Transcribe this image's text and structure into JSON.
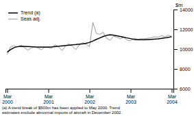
{
  "chart_data": {
    "type": "line",
    "ylabel": "$m",
    "annotations": [
      "(a) A trend break of $500m has been applied to May 2000. Trend\nestimates exclude abnormal imports of aircraft in December 2002."
    ],
    "categories": [
      "Mar\n2000",
      null,
      null,
      null,
      null,
      null,
      null,
      null,
      null,
      null,
      null,
      null,
      "Mar\n2001",
      null,
      null,
      null,
      null,
      null,
      null,
      null,
      null,
      null,
      null,
      null,
      "Mar\n2002",
      null,
      null,
      null,
      null,
      null,
      null,
      null,
      null,
      null,
      null,
      null,
      "Mar\n2003",
      null,
      null,
      null,
      null,
      null,
      null,
      null,
      null,
      null,
      null,
      null,
      "Mar\n2004"
    ],
    "series": [
      {
        "name": "Seas adj.",
        "color": "#999999",
        "values": [
          9450,
          10250,
          10350,
          10200,
          10400,
          10150,
          9900,
          10100,
          10300,
          10100,
          9950,
          10200,
          10150,
          10100,
          10450,
          10250,
          9850,
          10300,
          10550,
          10300,
          9950,
          10400,
          10650,
          10500,
          10250,
          12700,
          11600,
          11500,
          11700,
          11100,
          10900,
          11300,
          11200,
          11050,
          11200,
          10900,
          10850,
          11100,
          11000,
          11050,
          11050,
          11100,
          11150,
          11250,
          11200,
          11350,
          11250,
          11400,
          11300
        ]
      },
      {
        "name": "Trend (a)",
        "color": "#000000",
        "values": [
          9700,
          9950,
          10150,
          10250,
          10300,
          10280,
          10260,
          10240,
          10220,
          10210,
          10200,
          10200,
          10210,
          10230,
          10260,
          10290,
          10330,
          10370,
          10400,
          10430,
          10460,
          10500,
          10540,
          10590,
          10680,
          10820,
          10980,
          11130,
          11280,
          11390,
          11450,
          11410,
          11350,
          11280,
          11200,
          11130,
          11060,
          10990,
          10950,
          10940,
          10950,
          10970,
          10990,
          11010,
          11040,
          11080,
          11130,
          11190,
          11250
        ]
      }
    ],
    "ylim": [
      6000,
      14000
    ],
    "yticks": [
      6000,
      8000,
      10000,
      12000,
      14000
    ],
    "grid": false,
    "legend": "upper left"
  }
}
